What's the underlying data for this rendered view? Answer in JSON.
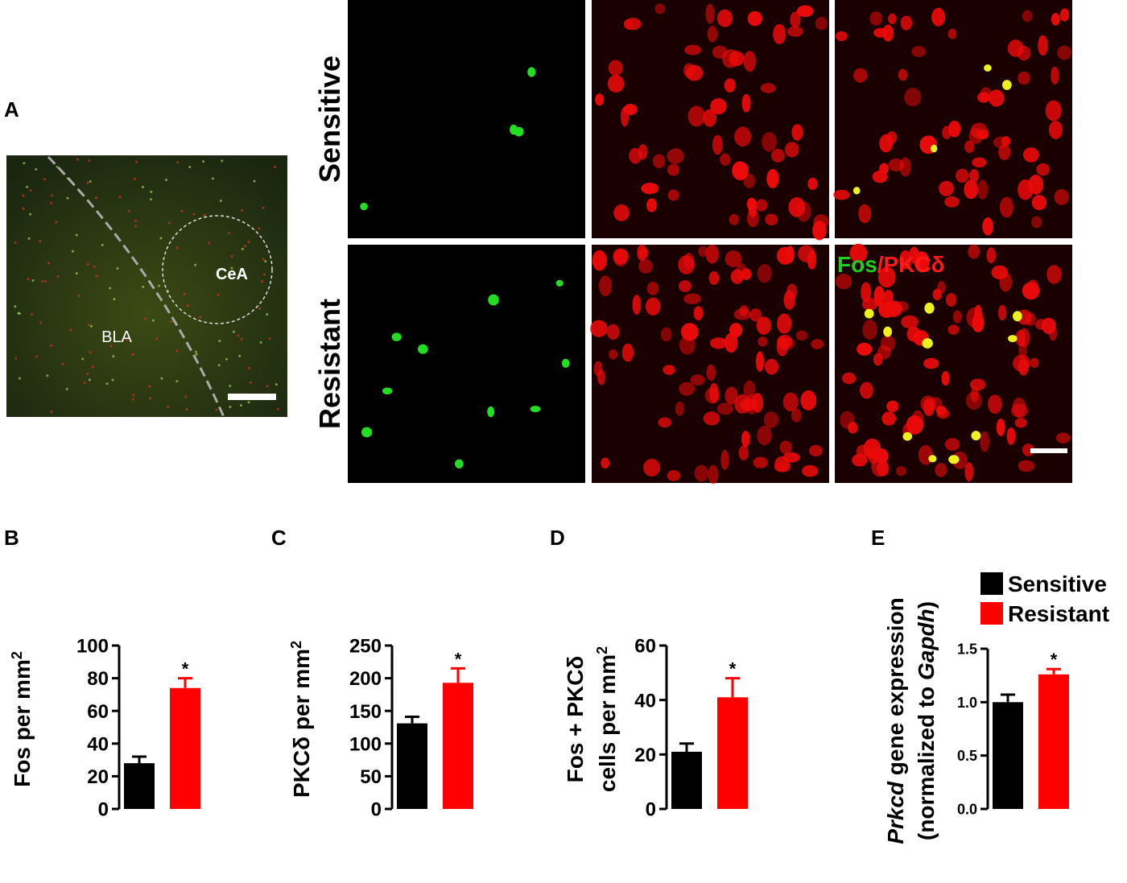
{
  "micrograph": {
    "panel": "A",
    "rows": [
      "Sensitive",
      "Resistant"
    ],
    "regions": [
      "CeA",
      "BLA"
    ],
    "stain": [
      {
        "text": "Fos",
        "color": "#1ecf1e"
      },
      {
        "text": "/PKCδ",
        "color": "#ff1a1a"
      }
    ]
  },
  "chart_data": [
    {
      "type": "bar",
      "panel": "B",
      "ylabel": [
        [
          {
            "text": "Fos per mm"
          },
          {
            "text": "2",
            "style": "sup"
          }
        ]
      ],
      "series": [
        {
          "name": "Sensitive",
          "color": "#000000",
          "values": [
            28
          ],
          "errors": [
            4
          ]
        },
        {
          "name": "Resistant",
          "color": "#ff0000",
          "values": [
            74
          ],
          "errors": [
            6
          ]
        }
      ],
      "significance": "*",
      "ylim": [
        0,
        100
      ],
      "yticks": [
        0,
        20,
        40,
        60,
        80,
        100
      ],
      "legend": false
    },
    {
      "type": "bar",
      "panel": "C",
      "ylabel": [
        [
          {
            "text": "PKCδ per mm"
          },
          {
            "text": "2",
            "style": "sup"
          }
        ]
      ],
      "series": [
        {
          "name": "Sensitive",
          "color": "#000000",
          "values": [
            131
          ],
          "errors": [
            10
          ]
        },
        {
          "name": "Resistant",
          "color": "#ff0000",
          "values": [
            193
          ],
          "errors": [
            22
          ]
        }
      ],
      "significance": "*",
      "ylim": [
        0,
        250
      ],
      "yticks": [
        0,
        50,
        100,
        150,
        200,
        250
      ],
      "legend": false
    },
    {
      "type": "bar",
      "panel": "D",
      "ylabel": [
        [
          {
            "text": "Fos + PKCδ"
          }
        ],
        [
          {
            "text": "cells per mm"
          },
          {
            "text": "2",
            "style": "sup"
          }
        ]
      ],
      "series": [
        {
          "name": "Sensitive",
          "color": "#000000",
          "values": [
            21
          ],
          "errors": [
            3
          ]
        },
        {
          "name": "Resistant",
          "color": "#ff0000",
          "values": [
            41
          ],
          "errors": [
            7
          ]
        }
      ],
      "significance": "*",
      "ylim": [
        0,
        60
      ],
      "yticks": [
        0,
        20,
        40,
        60
      ],
      "legend": false
    },
    {
      "type": "bar",
      "panel": "E",
      "ylabel": [
        [
          {
            "text": "Prkcd",
            "style": "italic"
          },
          {
            "text": " gene expression"
          }
        ],
        [
          {
            "text": "(normalized to "
          },
          {
            "text": "Gapdh",
            "style": "italic"
          },
          {
            "text": ")"
          }
        ]
      ],
      "series": [
        {
          "name": "Sensitive",
          "color": "#000000",
          "values": [
            1.0
          ],
          "errors": [
            0.07
          ]
        },
        {
          "name": "Resistant",
          "color": "#ff0000",
          "values": [
            1.26
          ],
          "errors": [
            0.05
          ]
        }
      ],
      "significance": "*",
      "ylim": [
        0,
        1.5
      ],
      "yticks": [
        {
          "value": 0,
          "label": "0.0"
        },
        {
          "value": 0.5,
          "label": "0.5"
        },
        {
          "value": 1,
          "label": "1.0"
        },
        {
          "value": 1.5,
          "label": "1.5"
        }
      ],
      "legend": true
    }
  ]
}
